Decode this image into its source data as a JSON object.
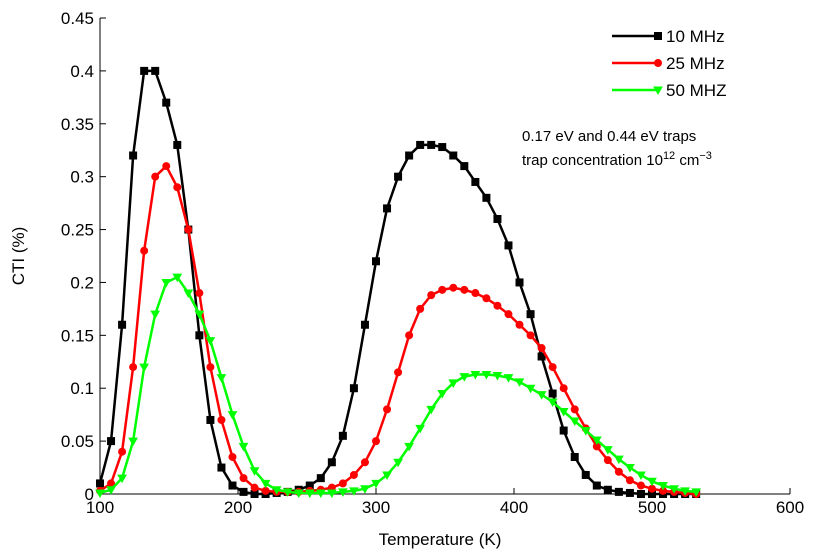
{
  "chart_data": {
    "type": "line",
    "xlabel": "Temperature (K)",
    "ylabel": "CTI (%)",
    "xlim": [
      100,
      600
    ],
    "xticks": [
      100,
      200,
      300,
      400,
      500,
      600
    ],
    "ylim": [
      0,
      0.45
    ],
    "yticks": [
      0,
      0.05,
      0.1,
      0.15,
      0.2,
      0.25,
      0.3,
      0.35,
      0.4,
      0.45
    ],
    "legend": "upper right",
    "annotations": [
      [
        {
          "text": "0.17 eV and 0.44 eV traps"
        }
      ],
      [
        {
          "text": "trap concentration 10"
        },
        {
          "text": "12",
          "sup": true
        },
        {
          "text": " cm"
        },
        {
          "text": "−3",
          "sup": true
        }
      ]
    ],
    "x": [
      100,
      108,
      116,
      124,
      132,
      140,
      148,
      156,
      164,
      172,
      180,
      188,
      196,
      204,
      212,
      220,
      228,
      236,
      244,
      252,
      260,
      268,
      276,
      284,
      292,
      300,
      308,
      316,
      324,
      332,
      340,
      348,
      356,
      364,
      372,
      380,
      388,
      396,
      404,
      412,
      420,
      428,
      436,
      444,
      452,
      460,
      468,
      476,
      484,
      492,
      500,
      508,
      516,
      524,
      532
    ],
    "series": [
      {
        "name": "10 MHz",
        "color": "#000000",
        "marker": "square",
        "values": [
          0.01,
          0.05,
          0.16,
          0.32,
          0.4,
          0.4,
          0.37,
          0.33,
          0.25,
          0.15,
          0.07,
          0.025,
          0.008,
          0.002,
          0,
          0,
          0.001,
          0.002,
          0.004,
          0.008,
          0.015,
          0.03,
          0.055,
          0.1,
          0.16,
          0.22,
          0.27,
          0.3,
          0.32,
          0.33,
          0.33,
          0.328,
          0.32,
          0.31,
          0.295,
          0.28,
          0.26,
          0.235,
          0.2,
          0.17,
          0.13,
          0.095,
          0.06,
          0.035,
          0.018,
          0.008,
          0.004,
          0.002,
          0.001,
          0,
          0,
          0,
          0,
          0,
          0
        ]
      },
      {
        "name": "25 MHz",
        "color": "#ff0000",
        "marker": "circle",
        "values": [
          0.003,
          0.01,
          0.04,
          0.12,
          0.23,
          0.3,
          0.31,
          0.29,
          0.25,
          0.19,
          0.12,
          0.07,
          0.035,
          0.015,
          0.006,
          0.003,
          0.002,
          0.002,
          0.002,
          0.003,
          0.004,
          0.006,
          0.01,
          0.018,
          0.03,
          0.05,
          0.08,
          0.115,
          0.15,
          0.175,
          0.188,
          0.193,
          0.195,
          0.193,
          0.19,
          0.185,
          0.178,
          0.17,
          0.16,
          0.15,
          0.138,
          0.12,
          0.1,
          0.08,
          0.062,
          0.045,
          0.032,
          0.021,
          0.013,
          0.008,
          0.005,
          0.003,
          0.002,
          0.001,
          0
        ]
      },
      {
        "name": "50 MHZ",
        "color": "#00ff00",
        "marker": "triangle-down",
        "values": [
          0.001,
          0.004,
          0.015,
          0.05,
          0.12,
          0.17,
          0.2,
          0.205,
          0.19,
          0.17,
          0.145,
          0.11,
          0.075,
          0.045,
          0.022,
          0.01,
          0.004,
          0.002,
          0.001,
          0.001,
          0.001,
          0.001,
          0.002,
          0.003,
          0.005,
          0.01,
          0.018,
          0.03,
          0.045,
          0.062,
          0.08,
          0.095,
          0.105,
          0.111,
          0.113,
          0.113,
          0.112,
          0.11,
          0.106,
          0.1,
          0.094,
          0.087,
          0.078,
          0.069,
          0.06,
          0.051,
          0.042,
          0.033,
          0.025,
          0.018,
          0.012,
          0.008,
          0.005,
          0.003,
          0.002
        ]
      }
    ]
  }
}
